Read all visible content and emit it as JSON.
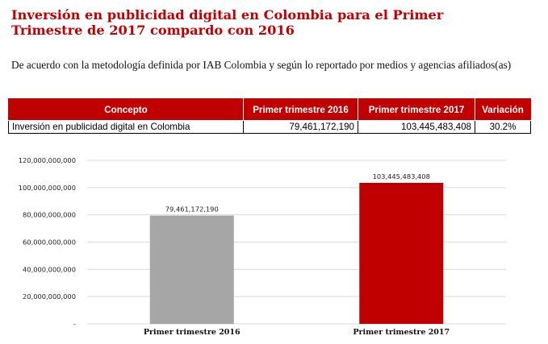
{
  "header": {
    "title": "Inversión en publicidad digital en Colombia para el Primer Trimestre de 2017 compardo con 2016",
    "subtitle": "De acuerdo con la metodología definida por IAB Colombia y según lo reportado por medios y agencias afiliados(as)"
  },
  "table": {
    "columns": [
      "Concepto",
      "Primer trimestre 2016",
      "Primer trimestre 2017",
      "Variación"
    ],
    "row": {
      "concepto": "Inversión en publicidad digital en Colombia",
      "q1_2016": "79,461,172,190",
      "q1_2017": "103,445,483,408",
      "variacion": "30.2%"
    }
  },
  "colors": {
    "accent": "#c00000",
    "bar_2016": "#a6a6a6",
    "bar_2017": "#c00000",
    "grid": "#d9d9d9"
  },
  "chart_data": {
    "type": "bar",
    "categories": [
      "Primer trimestre 2016",
      "Primer trimestre 2017"
    ],
    "values": [
      79461172190,
      103445483408
    ],
    "data_labels": [
      "79,461,172,190",
      "103,445,483,408"
    ],
    "ylim": [
      0,
      120000000000
    ],
    "yticks": [
      0,
      20000000000,
      40000000000,
      60000000000,
      80000000000,
      100000000000,
      120000000000
    ],
    "ytick_labels": [
      "-",
      "20,000,000,000",
      "40,000,000,000",
      "60,000,000,000",
      "80,000,000,000",
      "100,000,000,000",
      "120,000,000,000"
    ],
    "grid": true,
    "legend": "none"
  }
}
